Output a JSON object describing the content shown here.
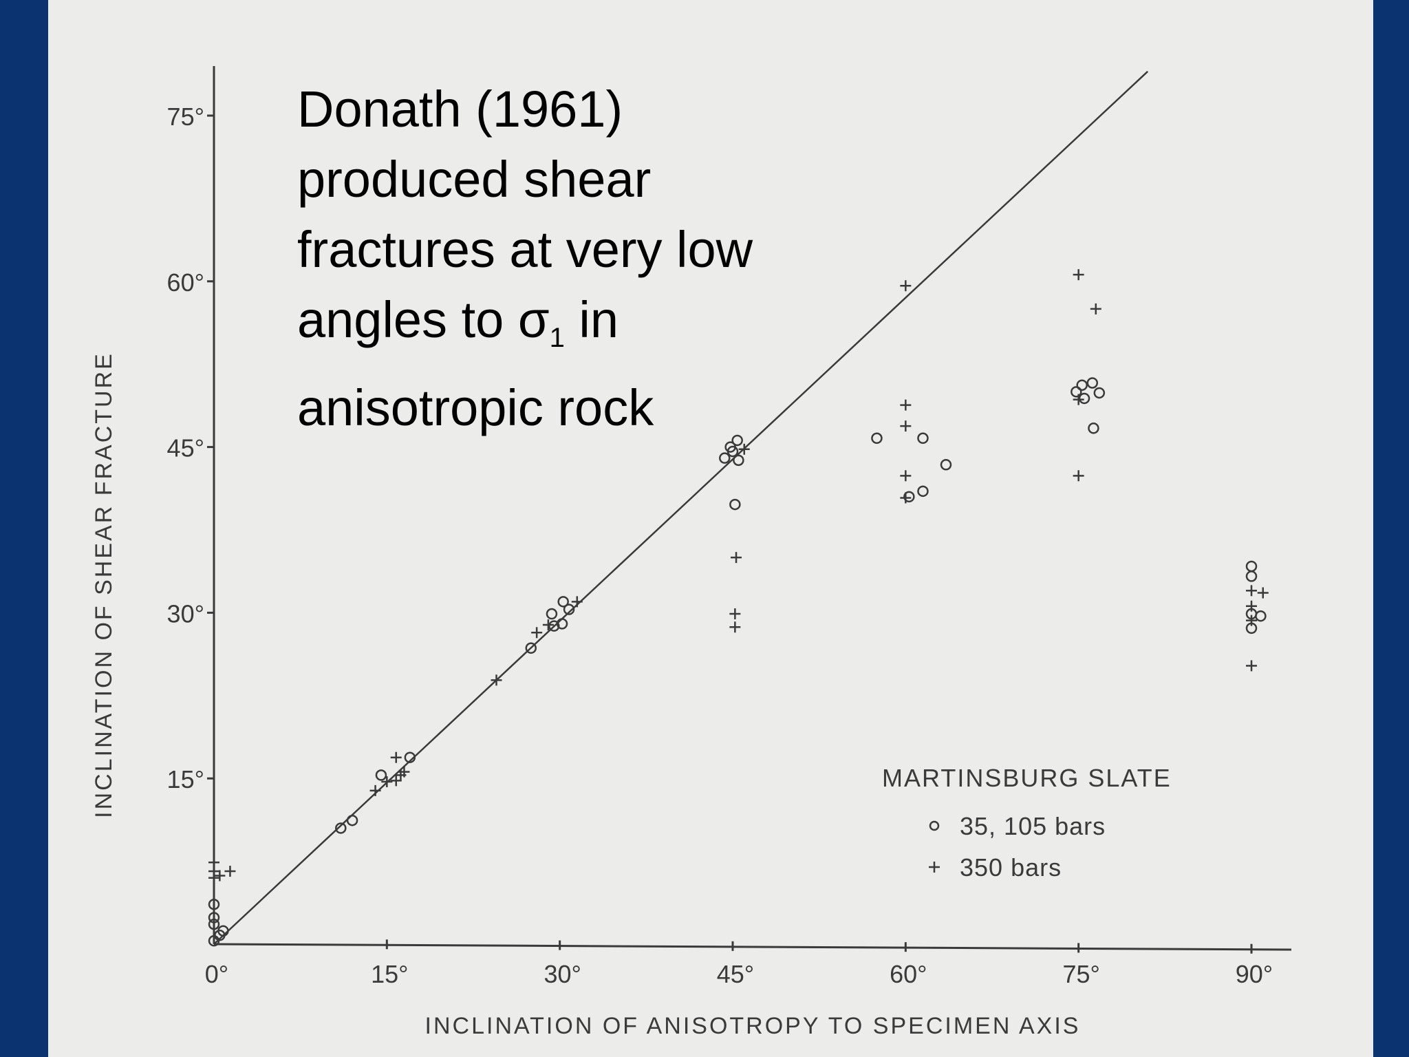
{
  "caption": {
    "line1": "Donath (1961)",
    "line2": "produced shear",
    "line3": "fractures at very low",
    "line4_pre": "angles to σ",
    "line4_sub": "1",
    "line4_post": " in",
    "line5": "anisotropic rock"
  },
  "colors": {
    "slide_background": "#0b3370",
    "paper": "#ececea",
    "ink": "#3a3a3a",
    "caption_text": "#000000"
  },
  "chart_data": {
    "type": "scatter",
    "title": "",
    "xlabel": "INCLINATION OF ANISOTROPY TO SPECIMEN AXIS",
    "ylabel": "INCLINATION OF SHEAR FRACTURE",
    "xlim": [
      0,
      90
    ],
    "ylim": [
      0,
      75
    ],
    "x_ticks": [
      {
        "value": 0,
        "label": "0°"
      },
      {
        "value": 15,
        "label": "15°"
      },
      {
        "value": 30,
        "label": "30°"
      },
      {
        "value": 45,
        "label": "45°"
      },
      {
        "value": 60,
        "label": "60°"
      },
      {
        "value": 75,
        "label": "75°"
      },
      {
        "value": 90,
        "label": "90°"
      }
    ],
    "y_ticks": [
      {
        "value": 15,
        "label": "15°"
      },
      {
        "value": 30,
        "label": "30°"
      },
      {
        "value": 45,
        "label": "45°"
      },
      {
        "value": 60,
        "label": "60°"
      },
      {
        "value": 75,
        "label": "75°"
      }
    ],
    "reference_line": {
      "x": [
        0,
        81
      ],
      "y": [
        0,
        79
      ]
    },
    "legend_title": "MARTINSBURG SLATE",
    "legend_position": "bottom-right",
    "grid": false,
    "series": [
      {
        "name": "35, 105 bars",
        "marker": "circle",
        "points": [
          [
            0,
            0.3
          ],
          [
            0.5,
            0.8
          ],
          [
            0.8,
            1.2
          ],
          [
            0,
            1.8
          ],
          [
            0,
            2.4
          ],
          [
            0,
            3.6
          ],
          [
            11,
            10.5
          ],
          [
            12,
            11.2
          ],
          [
            14.5,
            15.3
          ],
          [
            17,
            16.9
          ],
          [
            27.5,
            26.8
          ],
          [
            29.5,
            28.8
          ],
          [
            30.2,
            29.0
          ],
          [
            29.3,
            29.9
          ],
          [
            30.8,
            30.3
          ],
          [
            30.3,
            31.0
          ],
          [
            44.3,
            44.0
          ],
          [
            44.8,
            45.0
          ],
          [
            45.4,
            45.6
          ],
          [
            45.5,
            43.8
          ],
          [
            45.0,
            44.6
          ],
          [
            45.2,
            39.8
          ],
          [
            57.5,
            45.8
          ],
          [
            61.5,
            45.8
          ],
          [
            63.5,
            43.4
          ],
          [
            61.5,
            41.0
          ],
          [
            60.3,
            40.5
          ],
          [
            74.8,
            50.0
          ],
          [
            75.3,
            50.6
          ],
          [
            76.2,
            50.8
          ],
          [
            76.8,
            49.9
          ],
          [
            75.5,
            49.4
          ],
          [
            76.3,
            46.7
          ],
          [
            90,
            34.2
          ],
          [
            90,
            33.3
          ],
          [
            90,
            29.9
          ],
          [
            90.8,
            29.7
          ],
          [
            90,
            28.6
          ]
        ]
      },
      {
        "name": "350 bars",
        "marker": "plus",
        "points": [
          [
            0,
            7.4
          ],
          [
            0,
            6.6
          ],
          [
            1.4,
            6.6
          ],
          [
            0,
            6.0
          ],
          [
            0.5,
            6.2
          ],
          [
            14,
            13.9
          ],
          [
            15,
            14.7
          ],
          [
            15.8,
            14.8
          ],
          [
            16.2,
            15.3
          ],
          [
            16.5,
            15.6
          ],
          [
            15.8,
            16.9
          ],
          [
            24.5,
            23.9
          ],
          [
            28,
            28.2
          ],
          [
            29,
            28.9
          ],
          [
            31.5,
            31.0
          ],
          [
            46,
            44.8
          ],
          [
            45.3,
            35.0
          ],
          [
            45.2,
            29.9
          ],
          [
            45.2,
            28.7
          ],
          [
            60,
            59.6
          ],
          [
            60,
            48.8
          ],
          [
            60,
            46.9
          ],
          [
            60,
            42.4
          ],
          [
            60,
            40.4
          ],
          [
            75,
            49.3
          ],
          [
            75,
            42.4
          ],
          [
            75,
            60.6
          ],
          [
            76.5,
            57.5
          ],
          [
            90,
            32.0
          ],
          [
            91,
            31.8
          ],
          [
            90,
            30.6
          ],
          [
            90,
            29.3
          ],
          [
            90,
            25.2
          ]
        ]
      }
    ]
  }
}
